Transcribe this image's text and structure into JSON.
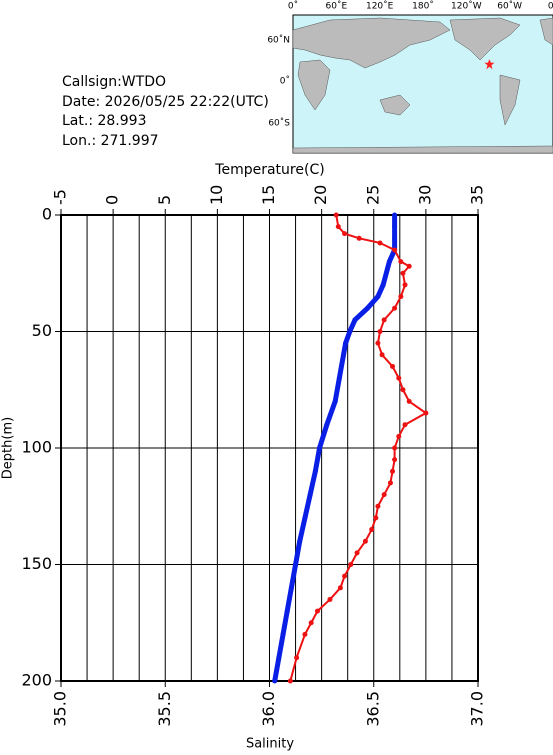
{
  "info": {
    "callsign": "Callsign:WTDO",
    "date": "Date:  2026/05/25 22:22(UTC)",
    "lat": "Lat.:  28.993",
    "lon": "Lon.:  271.997"
  },
  "map": {
    "lon_ticks": [
      "0˚",
      "60˚E",
      "120˚E",
      "180˚",
      "120˚W",
      "60˚W",
      "0˚"
    ],
    "lat_ticks": [
      "60˚N",
      "0˚",
      "60˚S"
    ],
    "station_lat": 28.993,
    "station_lon": 271.997
  },
  "chart_data": {
    "type": "profile",
    "x_label": "Temperature(C)",
    "x2_label": "Salinity",
    "y_label": "Depth(m)",
    "xlim": [
      -5,
      35
    ],
    "xticks": [
      -5,
      0,
      5,
      10,
      15,
      20,
      25,
      30,
      35
    ],
    "x2lim": [
      35,
      37
    ],
    "x2ticks": [
      {
        "value": 35,
        "label": "35.0"
      },
      {
        "value": 35.5,
        "label": "35.5"
      },
      {
        "value": 36,
        "label": "36.0"
      },
      {
        "value": 36.5,
        "label": "36.5"
      },
      {
        "value": 37,
        "label": "37.0"
      }
    ],
    "ylim": [
      0,
      200
    ],
    "yticks": [
      0,
      50,
      100,
      150,
      200
    ],
    "grid": true,
    "series": [
      {
        "name": "Temperature",
        "color": "#0a1fe6",
        "axis": "x",
        "depth": [
          0,
          5,
          10,
          15,
          20,
          30,
          35,
          40,
          45,
          50,
          55,
          60,
          70,
          80,
          90,
          100,
          110,
          120,
          130,
          140,
          150,
          160,
          170,
          180,
          190,
          200
        ],
        "values": [
          27.0,
          27.0,
          27.0,
          27.0,
          26.5,
          25.9,
          25.4,
          24.4,
          23.2,
          22.7,
          22.3,
          22.1,
          21.7,
          21.3,
          20.5,
          19.8,
          19.4,
          18.9,
          18.4,
          17.9,
          17.5,
          17.1,
          16.7,
          16.3,
          15.9,
          15.5
        ]
      },
      {
        "name": "Salinity",
        "color": "#ee1111",
        "axis": "x2",
        "depth": [
          0,
          5,
          8,
          10,
          12,
          15,
          20,
          22,
          25,
          30,
          35,
          40,
          45,
          50,
          55,
          60,
          65,
          70,
          75,
          80,
          85,
          90,
          95,
          100,
          105,
          110,
          115,
          120,
          125,
          130,
          135,
          140,
          145,
          150,
          155,
          160,
          165,
          170,
          175,
          180,
          190,
          200
        ],
        "values": [
          36.32,
          36.33,
          36.36,
          36.43,
          36.53,
          36.6,
          36.63,
          36.67,
          36.64,
          36.65,
          36.63,
          36.6,
          36.55,
          36.53,
          36.52,
          36.54,
          36.59,
          36.62,
          36.64,
          36.67,
          36.75,
          36.65,
          36.62,
          36.6,
          36.6,
          36.59,
          36.58,
          36.55,
          36.52,
          36.51,
          36.49,
          36.46,
          36.42,
          36.39,
          36.36,
          36.34,
          36.29,
          36.23,
          36.2,
          36.17,
          36.13,
          36.1
        ]
      }
    ]
  }
}
